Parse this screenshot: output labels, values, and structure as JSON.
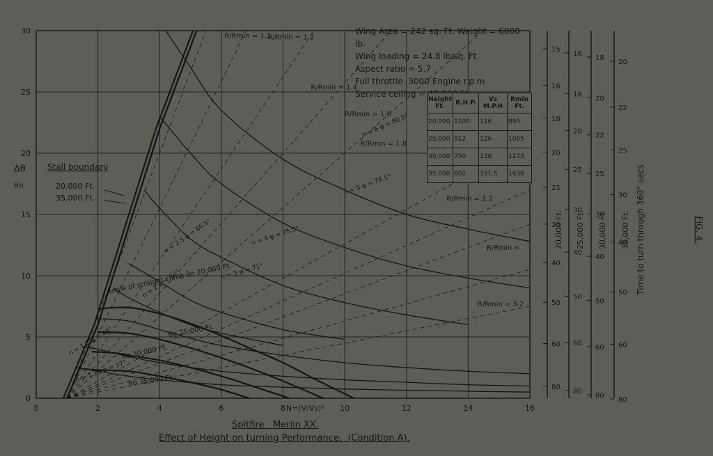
{
  "chart_data": {
    "type": "line",
    "title": "Spitfire   Merlin XX.",
    "subtitle": "Effect of Height on turning Performance.  (Condition A).",
    "xlabel": "N=(V/Vs)²",
    "ylabel": "Δθ",
    "ylabel2": "θo",
    "xlim": [
      0,
      16
    ],
    "ylim": [
      0,
      30
    ],
    "x_ticks": [
      "0",
      "2",
      "4",
      "6",
      "8",
      "10",
      "12",
      "14",
      "16"
    ],
    "y_ticks": [
      "0",
      "5",
      "10",
      "15",
      "20",
      "25",
      "30"
    ],
    "grid": true,
    "fig_label": "FIG. 4.",
    "notes": [
      "Wing Area = 242 sq. Ft.  Weight = 6000 lb.",
      "Wing loading = 24.8 lb/sq. Ft.",
      "Aspect ratio = 5.7",
      "Full throttle. 3000 Engine r.p.m",
      "Service ceiling = 42,000 Ft."
    ],
    "table": {
      "headers": [
        "Height Ft.",
        "B.H.P.",
        "Vs M.P.H",
        "Rmin Ft."
      ],
      "rows": [
        [
          "20,000",
          "1100",
          "116",
          "895"
        ],
        [
          "25,000",
          "912",
          "126",
          "1065"
        ],
        [
          "30,000",
          "750",
          "138",
          "1273"
        ],
        [
          "35,000",
          "602",
          "151.5",
          "1636"
        ]
      ]
    },
    "stall_boundary": {
      "label": "Stall boundary",
      "heights": [
        "20,000 Ft.",
        "35,000 Ft."
      ],
      "x": [
        1,
        2,
        3,
        4,
        5.2
      ],
      "y": [
        0,
        6,
        14,
        22,
        30
      ]
    },
    "radius_ratio_labels": [
      "R/Rmin = 1.1",
      "R/Rmin = 1.2",
      "R/Rmin = 1.4",
      "R/Rmin = 1.6",
      "R/Rmin = 1.8",
      "R/Rmin = 2.2",
      "R/Rmin =",
      "R/Rmin = 3.2"
    ],
    "load_factor_lines": [
      {
        "name": "n = 6  φ = 80.5°",
        "x": [
          4.2,
          5,
          6,
          8,
          10,
          12,
          14,
          16
        ],
        "y": [
          30,
          27,
          23.5,
          19.5,
          17,
          15,
          13.8,
          12.8
        ]
      },
      {
        "name": "n = 5  φ = 78.5°",
        "x": [
          4,
          5,
          6,
          8,
          10,
          12,
          14,
          16
        ],
        "y": [
          23,
          20,
          17.5,
          14.3,
          12.3,
          10.8,
          9.8,
          9
        ]
      },
      {
        "name": "n = 4  φ = 75.5°",
        "x": [
          3.5,
          4,
          5,
          6,
          8,
          10,
          12,
          14
        ],
        "y": [
          17,
          15.5,
          13,
          11.5,
          9.2,
          7.8,
          6.8,
          6
        ]
      },
      {
        "name": "n = 3  φ = 71°",
        "x": [
          3,
          4,
          5,
          6,
          8,
          10
        ],
        "y": [
          11,
          9.5,
          8,
          7,
          5.6,
          4.8
        ]
      },
      {
        "name": "n = 2.5  φ = 66.5°",
        "x": [
          2.5,
          3,
          4,
          5,
          6,
          8
        ],
        "y": [
          9,
          8.2,
          7,
          6,
          5.3,
          4.3
        ]
      },
      {
        "name": "n = 2  φ = 60°",
        "x": [
          2,
          3,
          4,
          5,
          6,
          8,
          10,
          12,
          14,
          16
        ],
        "y": [
          6.5,
          6.3,
          5.6,
          4.9,
          4.3,
          3.5,
          2.9,
          2.5,
          2.2,
          2
        ]
      },
      {
        "name": "n = 1.5  φ = 48°",
        "x": [
          1.5,
          2,
          3,
          4,
          6,
          8,
          10,
          12,
          14,
          16
        ],
        "y": [
          4.2,
          4,
          3.4,
          2.9,
          2.2,
          1.8,
          1.5,
          1.3,
          1.1,
          1
        ]
      },
      {
        "name": "n = 1.25  φ = 37°",
        "x": [
          1.3,
          2,
          3,
          4,
          6,
          8,
          10,
          12,
          14,
          16
        ],
        "y": [
          2.5,
          2.2,
          1.8,
          1.5,
          1.1,
          0.9,
          0.75,
          0.65,
          0.57,
          0.5
        ]
      }
    ],
    "climb_angle_curves": [
      {
        "name": "Angle of straight climb θo 20,000 Ft.",
        "x": [
          2,
          3,
          4,
          5,
          6,
          7,
          8,
          9,
          10.3
        ],
        "y": [
          7.3,
          7.4,
          6.9,
          6.1,
          5.1,
          4,
          2.9,
          1.6,
          0
        ]
      },
      {
        "name": "θo 25,000 Ft.",
        "x": [
          2,
          3,
          4,
          5,
          6,
          7,
          8,
          9.3
        ],
        "y": [
          5.4,
          5.3,
          4.8,
          4.1,
          3.3,
          2.4,
          1.4,
          0
        ]
      },
      {
        "name": "θo 30,000 Ft.",
        "x": [
          1.8,
          2.5,
          3,
          4,
          5,
          6,
          7,
          8.2
        ],
        "y": [
          3.8,
          3.7,
          3.5,
          3.1,
          2.5,
          1.8,
          1,
          0
        ]
      },
      {
        "name": "θo 35,000 Ft.",
        "x": [
          1.5,
          2,
          3,
          4,
          5,
          6,
          6.9
        ],
        "y": [
          2.4,
          2.3,
          2.2,
          1.8,
          1.3,
          0.7,
          0
        ]
      }
    ],
    "time_scales": {
      "title": "Time to turn through 360° secs",
      "columns": [
        {
          "label": "20,000 Ft.",
          "ticks": [
            "15",
            "16",
            "18",
            "20",
            "25",
            "30",
            "40",
            "50",
            "60",
            "80"
          ]
        },
        {
          "label": "25,000 Ft.",
          "ticks": [
            "16",
            "18",
            "20",
            "25",
            "30",
            "40",
            "50",
            "60",
            "80"
          ]
        },
        {
          "label": "30,000 Ft.",
          "ticks": [
            "18",
            "20",
            "22",
            "25",
            "30",
            "40",
            "50",
            "60",
            "80"
          ]
        },
        {
          "label": "35,000 Ft.",
          "ticks": [
            "20",
            "22",
            "25",
            "30",
            "40",
            "50",
            "60",
            "80"
          ]
        }
      ]
    },
    "colors": {
      "paper": "#5f5d58",
      "ink": "#161513",
      "grid": "#25231f"
    }
  }
}
